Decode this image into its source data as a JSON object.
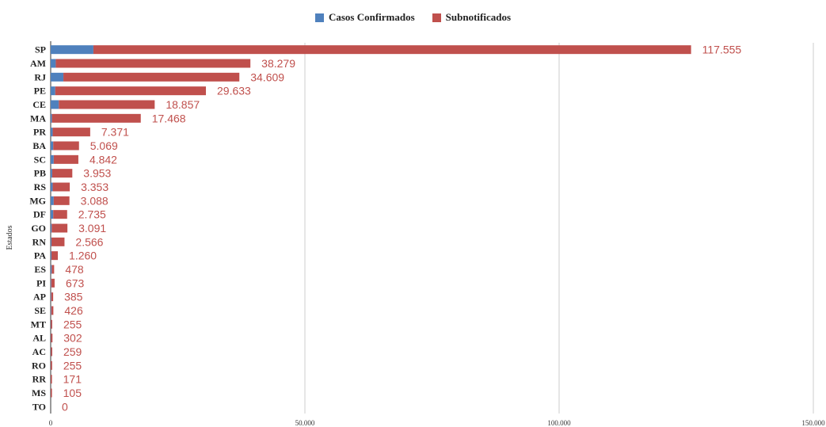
{
  "chart_data": {
    "type": "bar",
    "orientation": "horizontal",
    "stacked": true,
    "title": "",
    "ylabel": "Estados",
    "xlabel": "",
    "xlim": [
      0,
      150000
    ],
    "x_ticks": [
      "0",
      "50.000",
      "100.000",
      "150.000"
    ],
    "x_tick_values": [
      0,
      50000,
      100000,
      150000
    ],
    "grid": "vertical",
    "legend_position": "top",
    "categories": [
      "SP",
      "AM",
      "RJ",
      "PE",
      "CE",
      "MA",
      "PR",
      "BA",
      "SC",
      "PB",
      "RS",
      "MG",
      "DF",
      "GO",
      "RN",
      "PA",
      "ES",
      "PI",
      "AP",
      "SE",
      "MT",
      "AL",
      "AC",
      "RO",
      "RR",
      "MS",
      "TO"
    ],
    "series": [
      {
        "name": "Casos Confirmados",
        "color": "#4f81bd",
        "values": [
          8400,
          1000,
          2500,
          900,
          1600,
          250,
          400,
          500,
          600,
          300,
          400,
          600,
          500,
          200,
          150,
          150,
          200,
          100,
          100,
          100,
          50,
          50,
          50,
          30,
          20,
          20,
          0
        ]
      },
      {
        "name": "Subnotificados",
        "color": "#c0504d",
        "values": [
          117555,
          38279,
          34609,
          29633,
          18857,
          17468,
          7371,
          5069,
          4842,
          3953,
          3353,
          3088,
          2735,
          3091,
          2566,
          1260,
          478,
          673,
          385,
          426,
          255,
          302,
          259,
          255,
          171,
          105,
          0
        ]
      }
    ],
    "data_labels": [
      "117.555",
      "38.279",
      "34.609",
      "29.633",
      "18.857",
      "17.468",
      "7.371",
      "5.069",
      "4.842",
      "3.953",
      "3.353",
      "3.088",
      "2.735",
      "3.091",
      "2.566",
      "1.260",
      "478",
      "673",
      "385",
      "426",
      "255",
      "302",
      "259",
      "255",
      "171",
      "105",
      "0"
    ],
    "data_label_color": "#c0504d"
  }
}
